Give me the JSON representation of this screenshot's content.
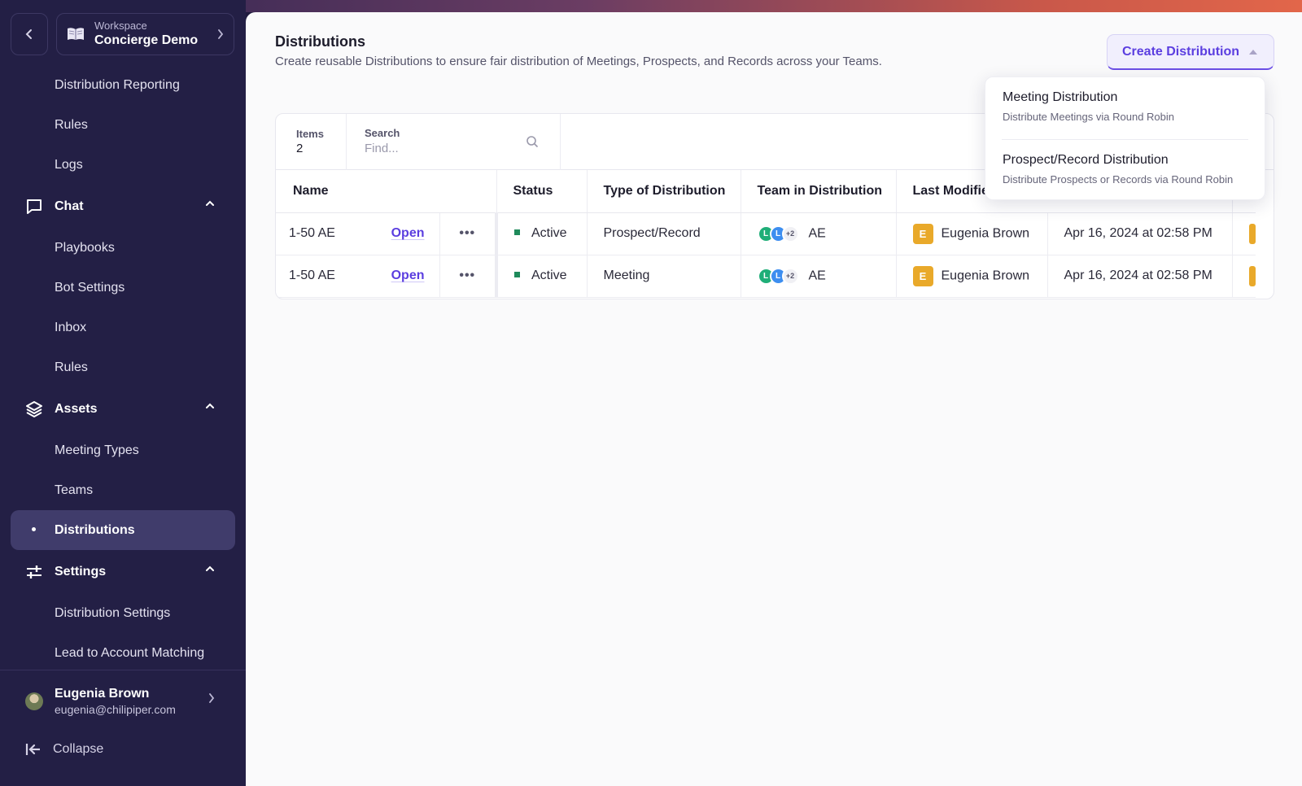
{
  "workspace": {
    "label": "Workspace",
    "name": "Concierge Demo"
  },
  "sidebar": {
    "items": [
      {
        "type": "item",
        "label": "Distribution Reporting",
        "name": "sidebar-item-distribution-reporting"
      },
      {
        "type": "item",
        "label": "Rules",
        "name": "sidebar-item-rules"
      },
      {
        "type": "item",
        "label": "Logs",
        "name": "sidebar-item-logs"
      },
      {
        "type": "group",
        "label": "Chat",
        "icon": "chat-icon"
      },
      {
        "type": "item",
        "label": "Playbooks",
        "name": "sidebar-item-playbooks"
      },
      {
        "type": "item",
        "label": "Bot Settings",
        "name": "sidebar-item-bot-settings"
      },
      {
        "type": "item",
        "label": "Inbox",
        "name": "sidebar-item-inbox"
      },
      {
        "type": "item",
        "label": "Rules",
        "name": "sidebar-item-chat-rules"
      },
      {
        "type": "group",
        "label": "Assets",
        "icon": "layers-icon"
      },
      {
        "type": "item",
        "label": "Meeting Types",
        "name": "sidebar-item-meeting-types"
      },
      {
        "type": "item",
        "label": "Teams",
        "name": "sidebar-item-teams"
      },
      {
        "type": "item",
        "label": "Distributions",
        "name": "sidebar-item-distributions",
        "active": true
      },
      {
        "type": "group",
        "label": "Settings",
        "icon": "sliders-icon"
      },
      {
        "type": "item",
        "label": "Distribution Settings",
        "name": "sidebar-item-distribution-settings"
      },
      {
        "type": "item",
        "label": "Lead to Account Matching",
        "name": "sidebar-item-lead-to-account-matching"
      }
    ],
    "user": {
      "name": "Eugenia Brown",
      "email": "eugenia@chilipiper.com"
    },
    "collapse_label": "Collapse"
  },
  "page": {
    "title": "Distributions",
    "subtitle": "Create reusable Distributions to ensure fair distribution of Meetings, Prospects, and Records across your Teams.",
    "create_button": "Create Distribution"
  },
  "toolbar": {
    "items_label": "Items",
    "items_count": "2",
    "search_label": "Search",
    "search_placeholder": "Find..."
  },
  "table": {
    "columns": [
      "Name",
      "Status",
      "Type of Distribution",
      "Team in Distribution",
      "Last Modified"
    ],
    "rows": [
      {
        "name": "1-50 AE",
        "open": "Open",
        "more": "•••",
        "status": "Active",
        "type": "Prospect/Record",
        "team_avatars": [
          "L",
          "L",
          "+2"
        ],
        "team": "AE",
        "modified_initial": "E",
        "modified_by": "Eugenia Brown",
        "modified_at": "Apr 16, 2024 at 02:58 PM"
      },
      {
        "name": "1-50 AE",
        "open": "Open",
        "more": "•••",
        "status": "Active",
        "type": "Meeting",
        "team_avatars": [
          "L",
          "L",
          "+2"
        ],
        "team": "AE",
        "modified_initial": "E",
        "modified_by": "Eugenia Brown",
        "modified_at": "Apr 16, 2024 at 02:58 PM"
      }
    ]
  },
  "dropdown": {
    "options": [
      {
        "title": "Meeting Distribution",
        "description": "Distribute Meetings via Round Robin"
      },
      {
        "title": "Prospect/Record Distribution",
        "description": "Distribute Prospects or Records via Round Robin"
      }
    ]
  },
  "colors": {
    "sidebar_bg": "#231f45",
    "accent": "#5b3ee0",
    "active_status": "#1f8a5b",
    "badge": "#e9a92a"
  }
}
